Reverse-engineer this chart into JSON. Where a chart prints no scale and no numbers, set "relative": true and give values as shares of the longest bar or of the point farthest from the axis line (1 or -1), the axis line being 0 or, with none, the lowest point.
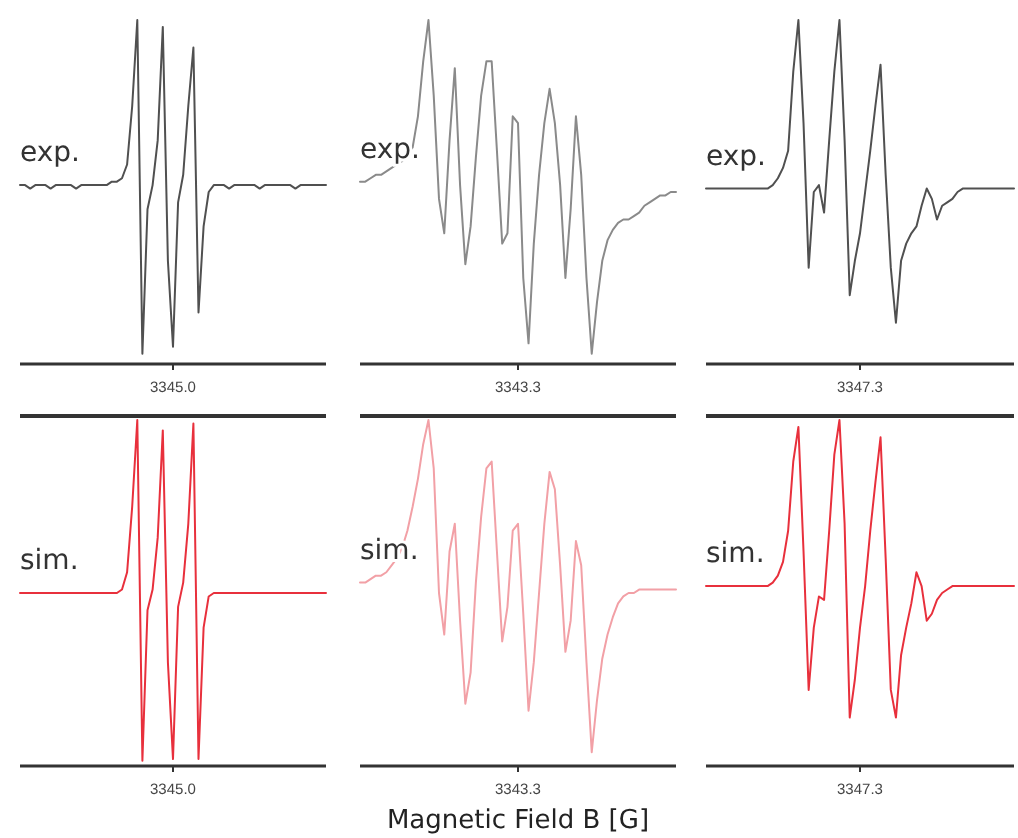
{
  "chart_data": [
    {
      "type": "line",
      "relative": true,
      "categories": [
        null,
        null,
        null,
        null,
        null,
        null,
        null,
        null,
        null,
        null,
        null,
        null,
        null,
        null,
        null,
        null,
        null,
        null,
        null,
        null,
        null,
        null,
        null,
        null,
        null,
        null,
        null,
        null,
        null,
        null,
        null,
        null,
        null,
        null,
        null,
        null,
        null,
        null,
        null,
        null,
        null,
        null,
        null,
        null,
        null,
        null,
        null,
        null,
        null,
        null,
        null,
        null,
        null,
        null,
        null,
        null,
        null,
        null,
        null,
        null,
        null
      ],
      "annotations": [
        "3345.0"
      ],
      "series": [
        {
          "name": "exp.",
          "color": "#505050",
          "values": [
            0.52,
            0.52,
            0.51,
            0.52,
            0.52,
            0.52,
            0.51,
            0.52,
            0.52,
            0.52,
            0.52,
            0.51,
            0.52,
            0.52,
            0.52,
            0.52,
            0.52,
            0.52,
            0.53,
            0.53,
            0.54,
            0.58,
            0.75,
            1.0,
            0.03,
            0.45,
            0.52,
            0.65,
            0.98,
            0.3,
            0.05,
            0.47,
            0.55,
            0.75,
            0.92,
            0.15,
            0.4,
            0.5,
            0.52,
            0.52,
            0.52,
            0.51,
            0.52,
            0.52,
            0.52,
            0.52,
            0.52,
            0.51,
            0.52,
            0.52,
            0.52,
            0.52,
            0.52,
            0.52,
            0.51,
            0.52,
            0.52,
            0.52,
            0.52,
            0.52,
            0.52
          ]
        }
      ]
    },
    {
      "type": "line",
      "relative": true,
      "categories": [
        null,
        null,
        null,
        null,
        null,
        null,
        null,
        null,
        null,
        null,
        null,
        null,
        null,
        null,
        null,
        null,
        null,
        null,
        null,
        null,
        null,
        null,
        null,
        null,
        null,
        null,
        null,
        null,
        null,
        null,
        null,
        null,
        null,
        null,
        null,
        null,
        null,
        null,
        null,
        null,
        null,
        null,
        null,
        null,
        null,
        null,
        null,
        null,
        null,
        null,
        null,
        null,
        null,
        null,
        null,
        null,
        null,
        null,
        null,
        null,
        null
      ],
      "annotations": [
        "3343.3"
      ],
      "series": [
        {
          "name": "exp.",
          "color": "#8a8a8a",
          "values": [
            0.53,
            0.53,
            0.54,
            0.55,
            0.55,
            0.56,
            0.57,
            0.58,
            0.59,
            0.61,
            0.63,
            0.72,
            0.88,
            1.0,
            0.78,
            0.48,
            0.38,
            0.65,
            0.86,
            0.52,
            0.29,
            0.4,
            0.6,
            0.78,
            0.88,
            0.88,
            0.62,
            0.35,
            0.38,
            0.72,
            0.7,
            0.25,
            0.06,
            0.35,
            0.55,
            0.7,
            0.8,
            0.7,
            0.52,
            0.25,
            0.45,
            0.72,
            0.55,
            0.25,
            0.03,
            0.18,
            0.3,
            0.36,
            0.39,
            0.41,
            0.42,
            0.42,
            0.43,
            0.44,
            0.46,
            0.47,
            0.48,
            0.49,
            0.49,
            0.5,
            0.5
          ]
        }
      ]
    },
    {
      "type": "line",
      "relative": true,
      "categories": [
        null,
        null,
        null,
        null,
        null,
        null,
        null,
        null,
        null,
        null,
        null,
        null,
        null,
        null,
        null,
        null,
        null,
        null,
        null,
        null,
        null,
        null,
        null,
        null,
        null,
        null,
        null,
        null,
        null,
        null,
        null,
        null,
        null,
        null,
        null,
        null,
        null,
        null,
        null,
        null,
        null,
        null,
        null,
        null,
        null,
        null,
        null,
        null,
        null,
        null,
        null,
        null,
        null,
        null,
        null,
        null,
        null,
        null,
        null,
        null,
        null
      ],
      "annotations": [
        "3347.3"
      ],
      "series": [
        {
          "name": "exp.",
          "color": "#505050",
          "values": [
            0.51,
            0.51,
            0.51,
            0.51,
            0.51,
            0.51,
            0.51,
            0.51,
            0.51,
            0.51,
            0.51,
            0.51,
            0.51,
            0.52,
            0.54,
            0.57,
            0.62,
            0.85,
            1.0,
            0.7,
            0.28,
            0.5,
            0.52,
            0.44,
            0.65,
            0.85,
            1.0,
            0.65,
            0.2,
            0.3,
            0.38,
            0.5,
            0.62,
            0.75,
            0.87,
            0.55,
            0.28,
            0.12,
            0.3,
            0.35,
            0.38,
            0.4,
            0.46,
            0.51,
            0.48,
            0.42,
            0.46,
            0.47,
            0.48,
            0.5,
            0.51,
            0.51,
            0.51,
            0.51,
            0.51,
            0.51,
            0.51,
            0.51,
            0.51,
            0.51,
            0.51
          ]
        }
      ]
    },
    {
      "type": "line",
      "relative": true,
      "categories": [
        null,
        null,
        null,
        null,
        null,
        null,
        null,
        null,
        null,
        null,
        null,
        null,
        null,
        null,
        null,
        null,
        null,
        null,
        null,
        null,
        null,
        null,
        null,
        null,
        null,
        null,
        null,
        null,
        null,
        null,
        null,
        null,
        null,
        null,
        null,
        null,
        null,
        null,
        null,
        null,
        null,
        null,
        null,
        null,
        null,
        null,
        null,
        null,
        null,
        null,
        null,
        null,
        null,
        null,
        null,
        null,
        null,
        null,
        null,
        null,
        null
      ],
      "annotations": [
        "3345.0"
      ],
      "series": [
        {
          "name": "sim.",
          "color": "#e8303c",
          "values": [
            0.5,
            0.5,
            0.5,
            0.5,
            0.5,
            0.5,
            0.5,
            0.5,
            0.5,
            0.5,
            0.5,
            0.5,
            0.5,
            0.5,
            0.5,
            0.5,
            0.5,
            0.5,
            0.5,
            0.5,
            0.51,
            0.56,
            0.75,
            1.0,
            0.015,
            0.45,
            0.51,
            0.66,
            0.97,
            0.3,
            0.02,
            0.46,
            0.53,
            0.7,
            0.99,
            0.02,
            0.4,
            0.49,
            0.5,
            0.5,
            0.5,
            0.5,
            0.5,
            0.5,
            0.5,
            0.5,
            0.5,
            0.5,
            0.5,
            0.5,
            0.5,
            0.5,
            0.5,
            0.5,
            0.5,
            0.5,
            0.5,
            0.5,
            0.5,
            0.5,
            0.5
          ]
        }
      ]
    },
    {
      "type": "line",
      "relative": true,
      "xlabel": "Magnetic Field B [G]",
      "categories": [
        null,
        null,
        null,
        null,
        null,
        null,
        null,
        null,
        null,
        null,
        null,
        null,
        null,
        null,
        null,
        null,
        null,
        null,
        null,
        null,
        null,
        null,
        null,
        null,
        null,
        null,
        null,
        null,
        null,
        null,
        null,
        null,
        null,
        null,
        null,
        null,
        null,
        null,
        null,
        null,
        null,
        null,
        null,
        null,
        null,
        null,
        null,
        null,
        null,
        null,
        null,
        null,
        null,
        null,
        null,
        null,
        null,
        null,
        null,
        null,
        null
      ],
      "annotations": [
        "3343.3"
      ],
      "series": [
        {
          "name": "sim.",
          "color": "#f2a0a6",
          "values": [
            0.53,
            0.53,
            0.54,
            0.55,
            0.55,
            0.56,
            0.58,
            0.6,
            0.63,
            0.68,
            0.75,
            0.83,
            0.93,
            1.0,
            0.86,
            0.5,
            0.38,
            0.62,
            0.7,
            0.42,
            0.18,
            0.27,
            0.53,
            0.72,
            0.86,
            0.88,
            0.62,
            0.36,
            0.46,
            0.68,
            0.7,
            0.44,
            0.16,
            0.3,
            0.5,
            0.7,
            0.85,
            0.8,
            0.58,
            0.33,
            0.42,
            0.65,
            0.58,
            0.3,
            0.04,
            0.19,
            0.31,
            0.38,
            0.43,
            0.47,
            0.49,
            0.5,
            0.5,
            0.51,
            0.51,
            0.51,
            0.51,
            0.51,
            0.51,
            0.51,
            0.51
          ]
        }
      ]
    },
    {
      "type": "line",
      "relative": true,
      "categories": [
        null,
        null,
        null,
        null,
        null,
        null,
        null,
        null,
        null,
        null,
        null,
        null,
        null,
        null,
        null,
        null,
        null,
        null,
        null,
        null,
        null,
        null,
        null,
        null,
        null,
        null,
        null,
        null,
        null,
        null,
        null,
        null,
        null,
        null,
        null,
        null,
        null,
        null,
        null,
        null,
        null,
        null,
        null,
        null,
        null,
        null,
        null,
        null,
        null,
        null,
        null,
        null,
        null,
        null,
        null,
        null,
        null,
        null,
        null,
        null,
        null
      ],
      "annotations": [
        "3347.3"
      ],
      "series": [
        {
          "name": "sim.",
          "color": "#e8303c",
          "values": [
            0.52,
            0.52,
            0.52,
            0.52,
            0.52,
            0.52,
            0.52,
            0.52,
            0.52,
            0.52,
            0.52,
            0.52,
            0.52,
            0.53,
            0.55,
            0.59,
            0.68,
            0.88,
            0.98,
            0.62,
            0.22,
            0.4,
            0.49,
            0.48,
            0.68,
            0.9,
            1.0,
            0.7,
            0.14,
            0.25,
            0.4,
            0.52,
            0.68,
            0.82,
            0.95,
            0.6,
            0.22,
            0.14,
            0.32,
            0.4,
            0.47,
            0.56,
            0.52,
            0.42,
            0.44,
            0.48,
            0.5,
            0.51,
            0.52,
            0.52,
            0.52,
            0.52,
            0.52,
            0.52,
            0.52,
            0.52,
            0.52,
            0.52,
            0.52,
            0.52,
            0.52
          ]
        }
      ]
    }
  ]
}
